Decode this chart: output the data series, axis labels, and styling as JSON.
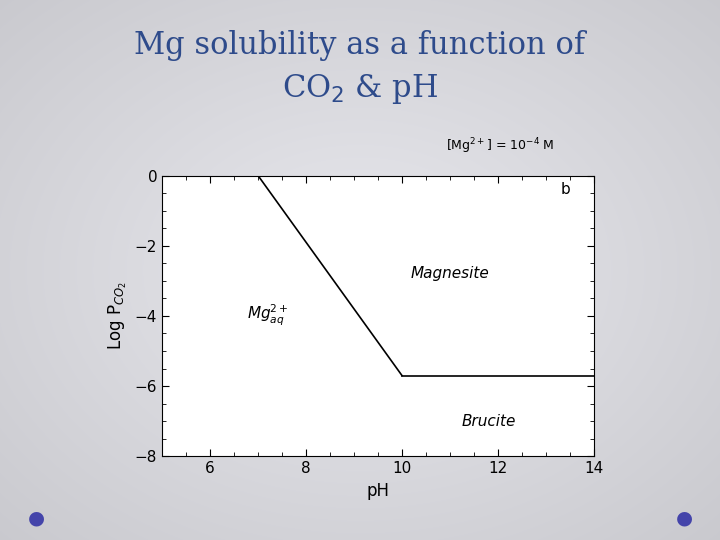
{
  "title_line1": "Mg solubility as a function of",
  "title_line2": "CO$_2$ & pH",
  "title_color": "#2E4B8B",
  "title_fontsize": 22,
  "background_color": "#d8d8de",
  "plot_bg_color": "#ffffff",
  "xlabel": "pH",
  "ylabel": "Log P$_{CO_2}$",
  "xlim": [
    5,
    14
  ],
  "ylim": [
    -8,
    0
  ],
  "xticks": [
    6,
    8,
    10,
    12,
    14
  ],
  "yticks": [
    0,
    -2,
    -4,
    -6,
    -8
  ],
  "line1_x": [
    7.0,
    10.0
  ],
  "line1_y": [
    0.0,
    -5.7
  ],
  "line2_x": [
    10.0,
    14.0
  ],
  "line2_y": [
    -5.7,
    -5.7
  ],
  "line_color": "#000000",
  "line_width": 1.2,
  "label_magnesite": "Magnesite",
  "label_brucite": "Brucite",
  "label_b": "b",
  "region_label_color": "#000000",
  "label_fontsize": 11,
  "axis_fontsize": 11,
  "tick_fontsize": 11,
  "annotation_text": "[Mg$^{2+}$] = 10$^{-4}$ M",
  "annotation_fontsize": 9,
  "dot_color": "#4444aa",
  "dot_size": 8
}
